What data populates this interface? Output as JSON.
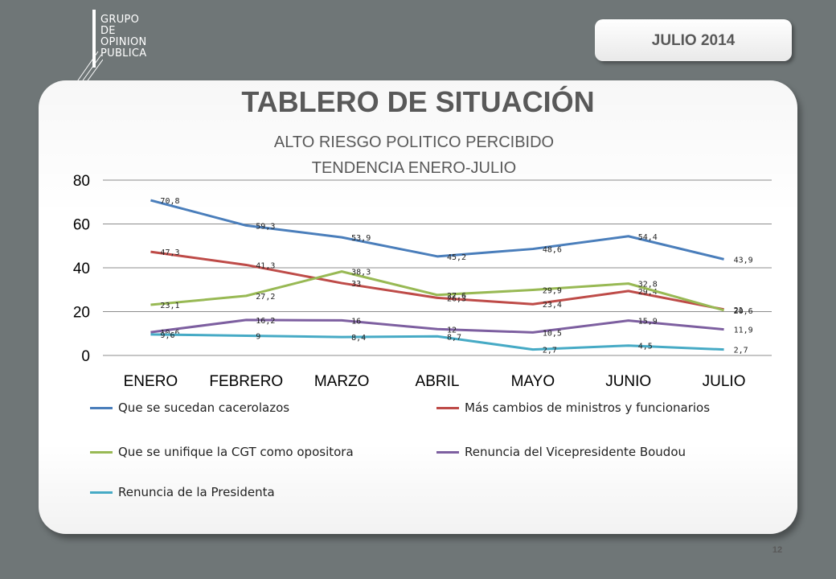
{
  "logo": {
    "lines": [
      "GRUPO",
      "DE",
      "OPINION",
      "PUBLICA"
    ]
  },
  "date_label": "JULIO  2014",
  "page_title": "TABLERO DE SITUACIÓN",
  "chart_title_line1": "ALTO  RIESGO POLITICO PERCIBIDO",
  "chart_title_line2": "TENDENCIA ENERO-JULIO",
  "page_number": "12",
  "chart_data": {
    "type": "line",
    "categories": [
      "ENERO",
      "FEBRERO",
      "MARZO",
      "ABRIL",
      "MAYO",
      "JUNIO",
      "JULIO"
    ],
    "ylim": [
      0,
      80
    ],
    "yticks": [
      "0",
      "20",
      "40",
      "60",
      "80"
    ],
    "ytick_values": [
      0,
      20,
      40,
      60,
      80
    ],
    "grid": true,
    "legend_position": "bottom",
    "series": [
      {
        "name": "Que se sucedan cacerolazos",
        "color": "#4a7ebb",
        "values": [
          70.8,
          59.3,
          53.9,
          45.2,
          48.6,
          54.4,
          43.9
        ],
        "labels": [
          "70,8",
          "59,3",
          "53,9",
          "45,2",
          "48,6",
          "54,4",
          "43,9"
        ]
      },
      {
        "name": "Más cambios de ministros y funcionarios",
        "color": "#be4b48",
        "values": [
          47.3,
          41.3,
          33,
          26.3,
          23.4,
          29.4,
          21
        ],
        "labels": [
          "47,3",
          "41,3",
          "33",
          "26,3",
          "23,4",
          "29,4",
          "21"
        ]
      },
      {
        "name": " Que se unifique la CGT como opositora",
        "color": "#98b954",
        "values": [
          23.1,
          27.2,
          38.3,
          27.6,
          29.9,
          32.8,
          20.6
        ],
        "labels": [
          "23,1",
          "27,2",
          "38,3",
          "27,6",
          "29,9",
          "32,8",
          "20,6"
        ]
      },
      {
        "name": "Renuncia del Vicepresidente Boudou",
        "color": "#7d5fa0",
        "values": [
          10.6,
          16.2,
          16,
          12,
          10.5,
          15.9,
          11.9
        ],
        "labels": [
          "10,6",
          "16,2",
          "16",
          "12",
          "10,5",
          "15,9",
          "11,9"
        ]
      },
      {
        "name": "Renuncia de la Presidenta",
        "color": "#46aac5",
        "values": [
          9.6,
          9,
          8.4,
          8.7,
          2.7,
          4.5,
          2.7
        ],
        "labels": [
          "9,6",
          "9",
          "8,4",
          "8,7",
          "2,7",
          "4,5",
          "2,7"
        ]
      }
    ]
  }
}
